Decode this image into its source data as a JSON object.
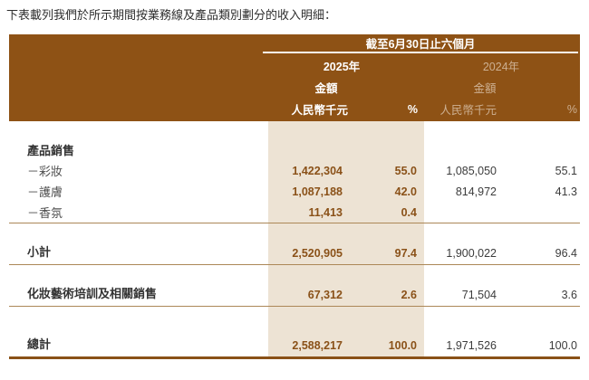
{
  "intro_text": "下表載列我們於所示期間按業務線及產品類別劃分的收入明細：",
  "table": {
    "period_header": "截至6月30日止六個月",
    "columns": {
      "y2025": {
        "year": "2025年",
        "amount": "金額",
        "unit": "人民幣千元",
        "percent": "%"
      },
      "y2024": {
        "year": "2024年",
        "amount": "金額",
        "unit": "人民幣千元",
        "percent": "%"
      }
    },
    "rows": [
      {
        "type": "group",
        "label": "產品銷售",
        "amount_2025": "",
        "pct_2025": "",
        "amount_2024": "",
        "pct_2024": ""
      },
      {
        "type": "item",
        "label": "－彩妝",
        "amount_2025": "1,422,304",
        "pct_2025": "55.0",
        "amount_2024": "1,085,050",
        "pct_2024": "55.1"
      },
      {
        "type": "item",
        "label": "－護膚",
        "amount_2025": "1,087,188",
        "pct_2025": "42.0",
        "amount_2024": "814,972",
        "pct_2024": "41.3"
      },
      {
        "type": "item",
        "label": "－香氛",
        "amount_2025": "11,413",
        "pct_2025": "0.4",
        "amount_2024": "",
        "pct_2024": "",
        "rule_after": true
      },
      {
        "type": "subtotal",
        "label": "小計",
        "amount_2025": "2,520,905",
        "pct_2025": "97.4",
        "amount_2024": "1,900,022",
        "pct_2024": "96.4"
      },
      {
        "type": "subtotal",
        "label": "化妝藝術培訓及相關銷售",
        "amount_2025": "67,312",
        "pct_2025": "2.6",
        "amount_2024": "71,504",
        "pct_2024": "3.6"
      },
      {
        "type": "total",
        "label": "總計",
        "amount_2025": "2,588,217",
        "pct_2025": "100.0",
        "amount_2024": "1,971,526",
        "pct_2024": "100.0"
      }
    ],
    "colors": {
      "header_bg": "#8E5215",
      "highlight_bg": "#EDE3D4",
      "accent_text": "#8A5118",
      "rule_thin": "#AC8757",
      "rule_thick": "#8A5117",
      "header_dim_text": "#CDB092"
    }
  }
}
